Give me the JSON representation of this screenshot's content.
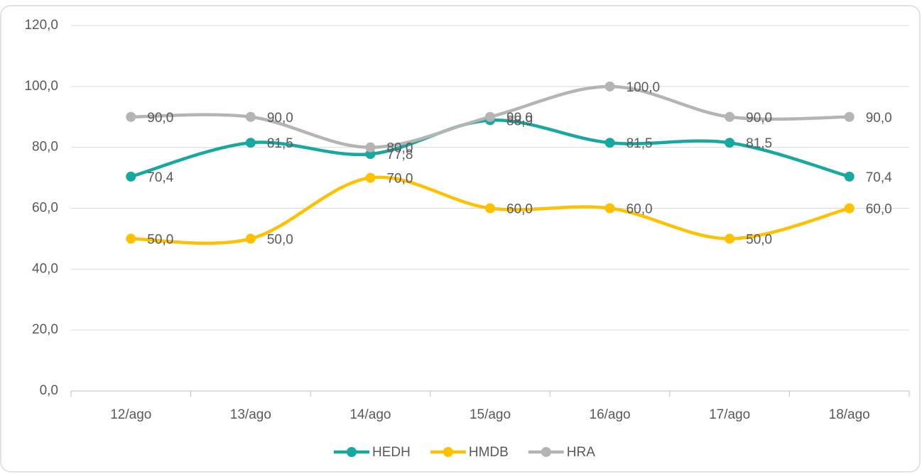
{
  "chart_data": {
    "type": "line",
    "categories": [
      "12/ago",
      "13/ago",
      "14/ago",
      "15/ago",
      "16/ago",
      "17/ago",
      "18/ago"
    ],
    "series": [
      {
        "name": "HEDH",
        "color": "#17a89f",
        "values": [
          70.4,
          81.5,
          77.8,
          88.9,
          81.5,
          81.5,
          70.4
        ],
        "value_labels": [
          "70,4",
          "81,5",
          "77,8",
          "88,9",
          "81,5",
          "81,5",
          "70,4"
        ]
      },
      {
        "name": "HMDB",
        "color": "#ffc000",
        "values": [
          50,
          50,
          70,
          60,
          60,
          50,
          60
        ],
        "value_labels": [
          "50,0",
          "50,0",
          "70,0",
          "60,0",
          "60,0",
          "50,0",
          "60,0"
        ]
      },
      {
        "name": "HRA",
        "color": "#b4b4b4",
        "values": [
          90,
          90,
          80,
          90,
          100,
          90,
          90
        ],
        "value_labels": [
          "90,0",
          "90,0",
          "80,0",
          "90,0",
          "100,0",
          "90,0",
          "90,0"
        ]
      }
    ],
    "ylim": [
      0,
      120
    ],
    "yticks": [
      {
        "value": 0,
        "label": "0,0"
      },
      {
        "value": 20,
        "label": "20,0"
      },
      {
        "value": 40,
        "label": "40,0"
      },
      {
        "value": 60,
        "label": "60,0"
      },
      {
        "value": 80,
        "label": "80,0"
      },
      {
        "value": 100,
        "label": "100,0"
      },
      {
        "value": 120,
        "label": "120,0"
      }
    ],
    "grid": true,
    "smooth": true,
    "legend": "bottom"
  }
}
